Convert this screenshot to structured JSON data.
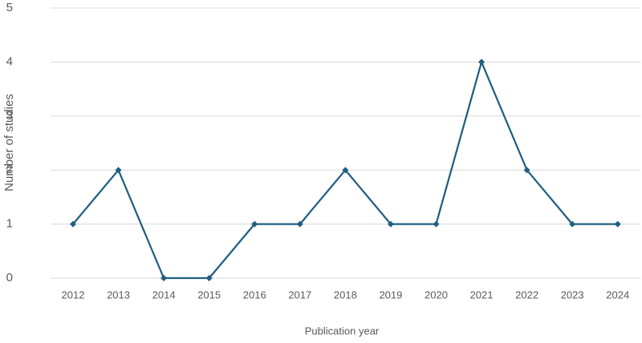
{
  "chart_data": {
    "type": "line",
    "x_label": "Publication year",
    "y_label": "Number of studies",
    "categories": [
      "2012",
      "2013",
      "2014",
      "2015",
      "2016",
      "2017",
      "2018",
      "2019",
      "2020",
      "2021",
      "2022",
      "2023",
      "2024"
    ],
    "values": [
      1,
      2,
      0,
      0,
      1,
      1,
      2,
      1,
      1,
      4,
      2,
      1,
      1
    ],
    "color": "#215f80",
    "ylim": [
      0,
      5
    ],
    "yticks": [
      0,
      1,
      2,
      3,
      4,
      5
    ],
    "grid": true
  }
}
